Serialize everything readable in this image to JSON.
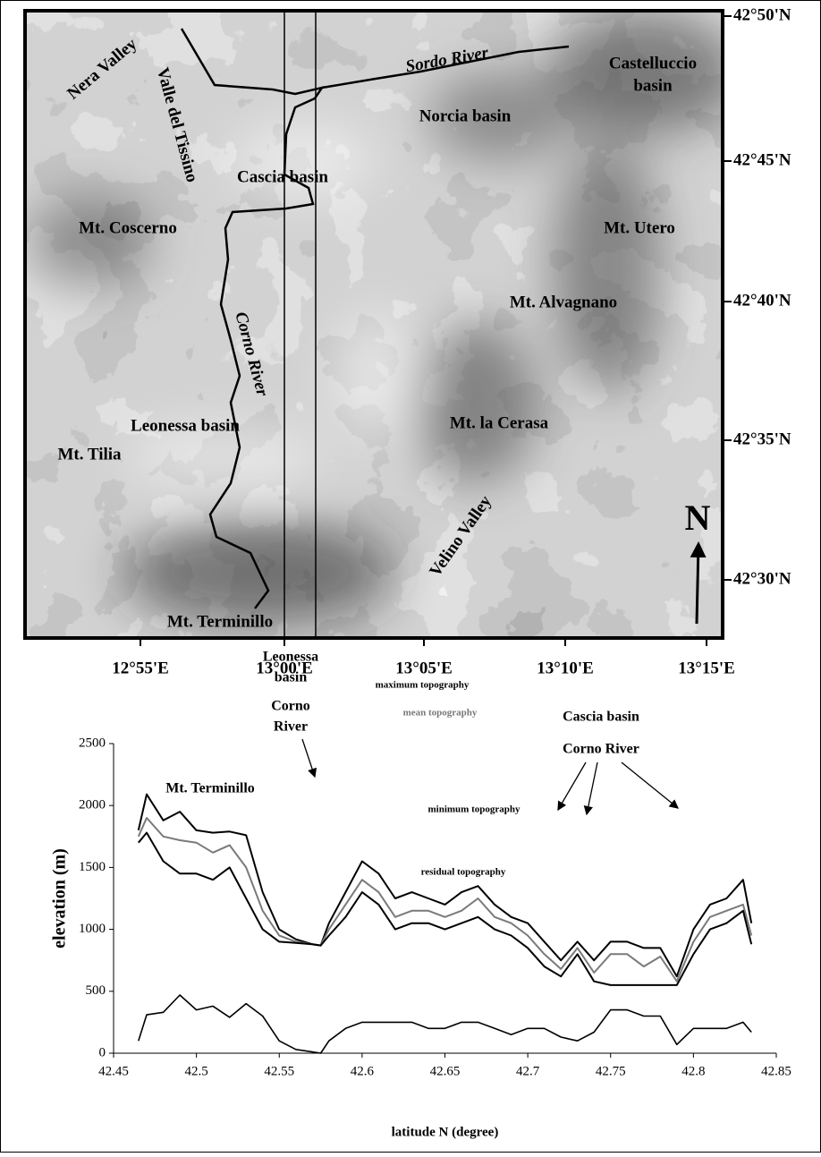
{
  "map": {
    "labels": [
      "Nera Valley",
      "Valle del Tissino",
      "Sordo River",
      "Castelluccio",
      "basin",
      "Norcia basin",
      "Cascia basin",
      "Mt. Coscerno",
      "Mt. Utero",
      "Mt. Alvagnano",
      "Corno River",
      "Leonessa basin",
      "Mt. la Cerasa",
      "Mt. Tilia",
      "Velino Valley",
      "Mt. Terminillo"
    ],
    "lat_labels": [
      "42°50'N",
      "42°45'N",
      "42°40'N",
      "42°35'N",
      "42°30'N"
    ],
    "lon_labels": [
      "12°55'E",
      "13°00'E",
      "13°05'E",
      "13°10'E",
      "13°15'E"
    ],
    "north": "N"
  },
  "chart_data": {
    "type": "line",
    "xlabel": "latitude N (degree)",
    "ylabel": "elevation (m)",
    "annotations": [
      "Mt. Terminillo",
      "Leonessa",
      "basin",
      "Corno",
      "River",
      "maximum topography",
      "mean topography",
      "minimum topography",
      "residual topography",
      "Cascia basin",
      "Corno River"
    ],
    "x": [
      42.465,
      42.47,
      42.48,
      42.49,
      42.5,
      42.51,
      42.52,
      42.53,
      42.54,
      42.55,
      42.56,
      42.57,
      42.575,
      42.58,
      42.59,
      42.6,
      42.61,
      42.62,
      42.63,
      42.64,
      42.65,
      42.66,
      42.67,
      42.68,
      42.69,
      42.7,
      42.71,
      42.72,
      42.73,
      42.74,
      42.75,
      42.76,
      42.77,
      42.78,
      42.79,
      42.8,
      42.81,
      42.82,
      42.83,
      42.835
    ],
    "series": [
      {
        "name": "maximum topography",
        "color": "#000000",
        "values": [
          1800,
          2090,
          1880,
          1950,
          1800,
          1780,
          1790,
          1760,
          1300,
          1000,
          920,
          880,
          870,
          1050,
          1300,
          1550,
          1450,
          1250,
          1300,
          1250,
          1200,
          1300,
          1350,
          1200,
          1100,
          1050,
          900,
          750,
          900,
          750,
          900,
          900,
          850,
          850,
          620,
          1000,
          1200,
          1250,
          1400,
          1050
        ]
      },
      {
        "name": "mean topography",
        "color": "#7a7a7a",
        "values": [
          1750,
          1900,
          1750,
          1720,
          1700,
          1620,
          1680,
          1500,
          1150,
          950,
          900,
          880,
          870,
          1000,
          1200,
          1400,
          1300,
          1100,
          1150,
          1150,
          1100,
          1150,
          1250,
          1100,
          1050,
          950,
          800,
          680,
          850,
          650,
          800,
          800,
          700,
          780,
          580,
          900,
          1100,
          1150,
          1200,
          950
        ]
      },
      {
        "name": "minimum topography",
        "color": "#000000",
        "values": [
          1700,
          1780,
          1550,
          1450,
          1450,
          1400,
          1500,
          1250,
          1000,
          900,
          890,
          880,
          870,
          950,
          1100,
          1300,
          1200,
          1000,
          1050,
          1050,
          1000,
          1050,
          1100,
          1000,
          950,
          850,
          700,
          620,
          800,
          580,
          550,
          550,
          550,
          550,
          550,
          800,
          1000,
          1050,
          1150,
          880
        ]
      },
      {
        "name": "residual topography",
        "color": "#000000",
        "values": [
          100,
          310,
          330,
          470,
          350,
          380,
          290,
          400,
          300,
          100,
          30,
          10,
          0,
          100,
          200,
          250,
          250,
          250,
          250,
          200,
          200,
          250,
          250,
          200,
          150,
          200,
          200,
          130,
          100,
          170,
          350,
          350,
          300,
          300,
          70,
          200,
          200,
          200,
          250,
          170
        ]
      }
    ],
    "xlim": [
      42.45,
      42.85
    ],
    "ylim": [
      0,
      2500
    ],
    "xticks": [
      42.45,
      42.5,
      42.55,
      42.6,
      42.65,
      42.7,
      42.75,
      42.8,
      42.85
    ],
    "yticks": [
      0,
      500,
      1000,
      1500,
      2000,
      2500
    ]
  }
}
